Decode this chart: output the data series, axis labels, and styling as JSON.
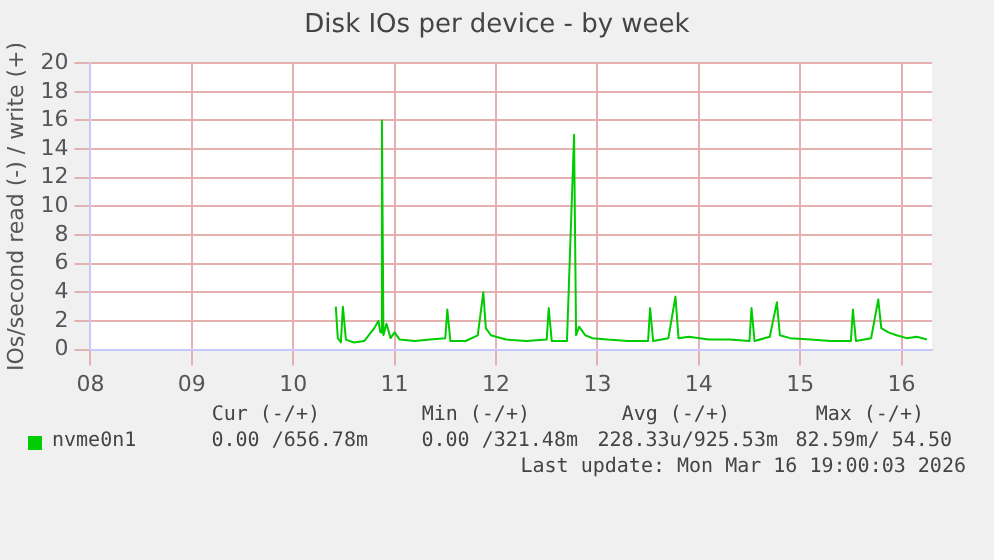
{
  "chart_data": {
    "type": "line",
    "title": "Disk IOs per device - by week",
    "ylabel": "IOs/second read (-) / write (+)",
    "xlim": [
      8,
      16.3
    ],
    "xticks": [
      {
        "value": 8,
        "label": "08"
      },
      {
        "value": 9,
        "label": "09"
      },
      {
        "value": 10,
        "label": "10"
      },
      {
        "value": 11,
        "label": "11"
      },
      {
        "value": 12,
        "label": "12"
      },
      {
        "value": 13,
        "label": "13"
      },
      {
        "value": 14,
        "label": "14"
      },
      {
        "value": 15,
        "label": "15"
      },
      {
        "value": 16,
        "label": "16"
      }
    ],
    "ylim": [
      0,
      20
    ],
    "yticks": [
      0,
      2,
      4,
      6,
      8,
      10,
      12,
      14,
      16,
      18,
      20
    ],
    "grid": true,
    "legend": "bottom left",
    "marker": "none",
    "line_style": "solid",
    "series": [
      {
        "name": "nvme0n1",
        "color": "#00cc00",
        "x": [
          10.42,
          10.44,
          10.47,
          10.49,
          10.52,
          10.6,
          10.7,
          10.8,
          10.84,
          10.86,
          10.875,
          10.89,
          10.92,
          10.96,
          11.0,
          11.05,
          11.2,
          11.35,
          11.5,
          11.52,
          11.55,
          11.7,
          11.82,
          11.875,
          11.9,
          11.95,
          12.0,
          12.1,
          12.3,
          12.5,
          12.52,
          12.55,
          12.7,
          12.77,
          12.79,
          12.82,
          12.88,
          12.95,
          13.1,
          13.3,
          13.5,
          13.52,
          13.55,
          13.7,
          13.77,
          13.8,
          13.9,
          14.1,
          14.3,
          14.5,
          14.52,
          14.55,
          14.7,
          14.77,
          14.8,
          14.9,
          15.1,
          15.3,
          15.5,
          15.52,
          15.55,
          15.7,
          15.77,
          15.8,
          15.87,
          15.95,
          16.05,
          16.15,
          16.25
        ],
        "values": [
          3.0,
          0.8,
          0.5,
          3.0,
          0.7,
          0.5,
          0.6,
          1.5,
          2.0,
          1.2,
          16,
          1.0,
          1.8,
          0.8,
          1.2,
          0.7,
          0.6,
          0.7,
          0.8,
          2.8,
          0.6,
          0.6,
          1.0,
          4.0,
          1.5,
          1.0,
          0.9,
          0.7,
          0.6,
          0.7,
          2.9,
          0.6,
          0.6,
          15.0,
          1.0,
          1.6,
          1.0,
          0.8,
          0.7,
          0.6,
          0.6,
          2.9,
          0.6,
          0.8,
          3.7,
          0.8,
          0.9,
          0.7,
          0.7,
          0.6,
          2.9,
          0.6,
          0.9,
          3.3,
          1.0,
          0.8,
          0.7,
          0.6,
          0.6,
          2.8,
          0.6,
          0.8,
          3.5,
          1.5,
          1.2,
          1.0,
          0.8,
          0.9,
          0.7
        ]
      }
    ],
    "annotations": [
      "Cur (-/+)",
      "Min (-/+)",
      "Avg (-/+)",
      "Max (-/+)",
      "0.00 /656.78m",
      "0.00 /321.48m",
      "228.33u/925.53m",
      "82.59m/ 54.50",
      "Last update: Mon Mar 16 19:00:03 2026"
    ]
  }
}
